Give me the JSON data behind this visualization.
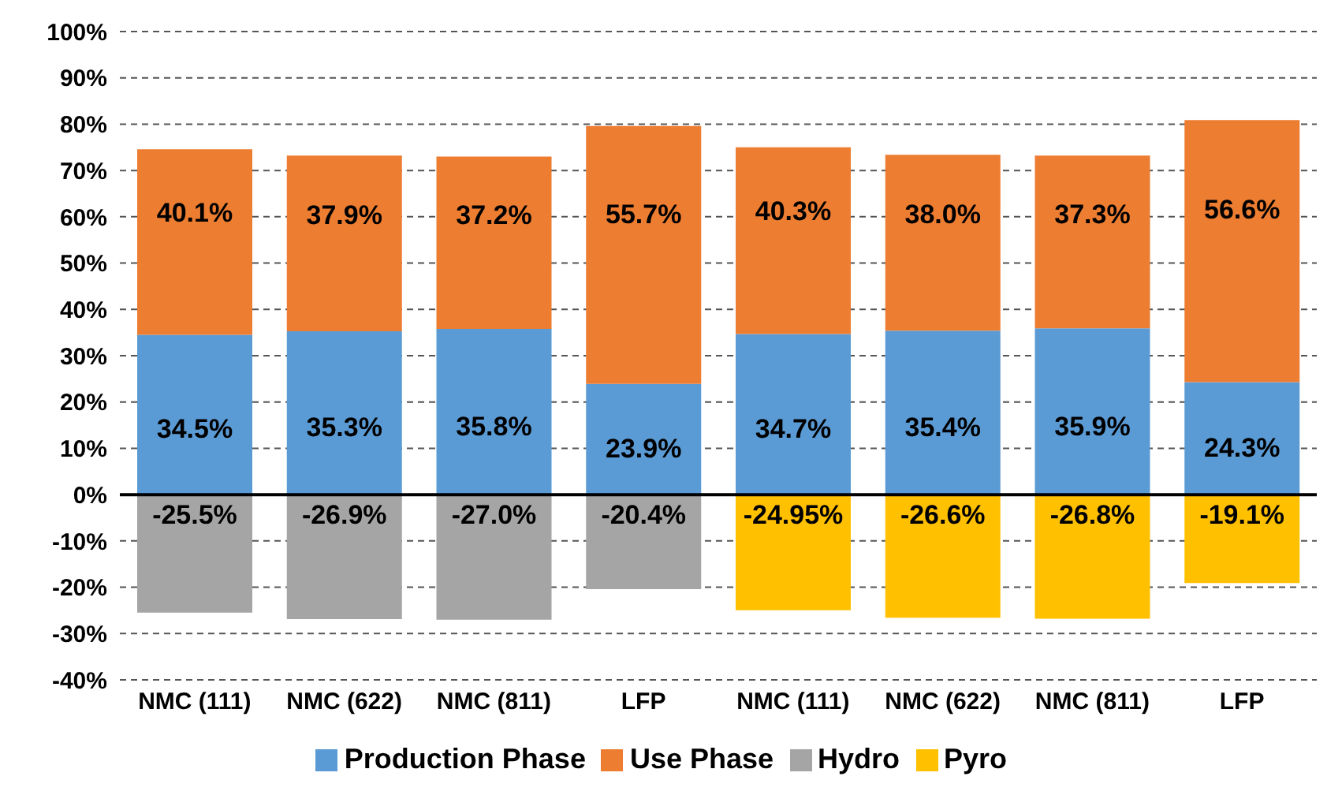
{
  "chart_data": {
    "type": "bar",
    "stacked": true,
    "categories": [
      "NMC (111)",
      "NMC (622)",
      "NMC (811)",
      "LFP",
      "NMC (111)",
      "NMC (622)",
      "NMC (811)",
      "LFP"
    ],
    "series": [
      {
        "name": "Production Phase",
        "color": "#5b9bd5",
        "values": [
          34.5,
          35.3,
          35.8,
          23.9,
          34.7,
          35.4,
          35.9,
          24.3
        ],
        "value_labels": [
          "34.5%",
          "35.3%",
          "35.8%",
          "23.9%",
          "34.7%",
          "35.4%",
          "35.9%",
          "24.3%"
        ]
      },
      {
        "name": "Use Phase",
        "color": "#ed7d31",
        "values": [
          40.1,
          37.9,
          37.2,
          55.7,
          40.3,
          38.0,
          37.3,
          56.6
        ],
        "value_labels": [
          "40.1%",
          "37.9%",
          "37.2%",
          "55.7%",
          "40.3%",
          "38.0%",
          "37.3%",
          "56.6%"
        ]
      },
      {
        "name": "Hydro",
        "color": "#a5a5a5",
        "values": [
          -25.5,
          -26.9,
          -27.0,
          -20.4,
          null,
          null,
          null,
          null
        ],
        "value_labels": [
          "-25.5%",
          "-26.9%",
          "-27.0%",
          "-20.4%",
          null,
          null,
          null,
          null
        ]
      },
      {
        "name": "Pyro",
        "color": "#ffc000",
        "values": [
          null,
          null,
          null,
          null,
          -24.95,
          -26.6,
          -26.8,
          -19.1
        ],
        "value_labels": [
          null,
          null,
          null,
          null,
          "-24.95%",
          "-26.6%",
          "-26.8%",
          "-19.1%"
        ]
      }
    ],
    "ylim": [
      -40,
      100
    ],
    "yticks": [
      {
        "value": -40,
        "label": "-40%"
      },
      {
        "value": -30,
        "label": "-30%"
      },
      {
        "value": -20,
        "label": "-20%"
      },
      {
        "value": -10,
        "label": "-10%"
      },
      {
        "value": 0,
        "label": "0%"
      },
      {
        "value": 10,
        "label": "10%"
      },
      {
        "value": 20,
        "label": "20%"
      },
      {
        "value": 30,
        "label": "30%"
      },
      {
        "value": 40,
        "label": "40%"
      },
      {
        "value": 50,
        "label": "50%"
      },
      {
        "value": 60,
        "label": "60%"
      },
      {
        "value": 70,
        "label": "70%"
      },
      {
        "value": 80,
        "label": "80%"
      },
      {
        "value": 90,
        "label": "90%"
      },
      {
        "value": 100,
        "label": "100%"
      }
    ],
    "grid": "y",
    "legend": "bottom"
  }
}
